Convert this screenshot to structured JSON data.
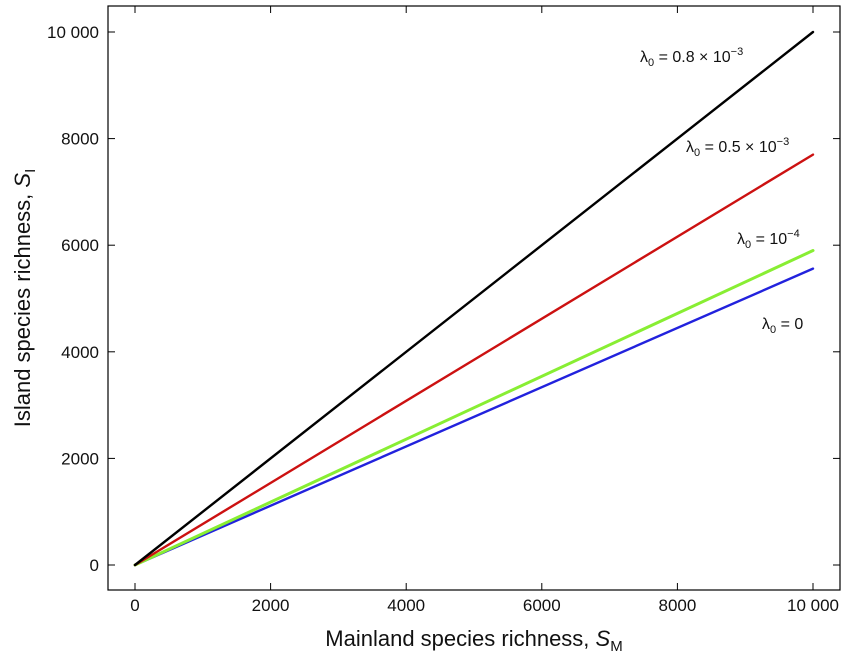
{
  "chart_data": {
    "type": "line",
    "title": "",
    "xlabel": {
      "text": "Mainland species richness, ",
      "symbol": "S",
      "sub": "M"
    },
    "ylabel": {
      "text": "Island species richness, ",
      "symbol": "S",
      "sub": "I"
    },
    "xlim": [
      0,
      10000
    ],
    "ylim": [
      0,
      10000
    ],
    "xticks": [
      0,
      2000,
      4000,
      6000,
      8000,
      10000
    ],
    "xtick_labels": [
      "0",
      "2000",
      "4000",
      "6000",
      "8000",
      "10 000"
    ],
    "yticks": [
      0,
      2000,
      4000,
      6000,
      8000,
      10000
    ],
    "ytick_labels": [
      "0",
      "2000",
      "4000",
      "6000",
      "8000",
      "10 000"
    ],
    "grid": false,
    "legend": "none (labels placed next to lines)",
    "series": [
      {
        "name": "λ0 = 0.8 × 10−3",
        "label": {
          "symbol": "λ",
          "sub": "0",
          "text": " = 0.8 × 10",
          "sup": "−3"
        },
        "color": "#000000",
        "x": [
          0,
          10000
        ],
        "y": [
          0,
          10000
        ]
      },
      {
        "name": "λ0 = 0.5 × 10−3",
        "label": {
          "symbol": "λ",
          "sub": "0",
          "text": " = 0.5 × 10",
          "sup": "−3"
        },
        "color": "#cc1111",
        "x": [
          0,
          10000
        ],
        "y": [
          0,
          7700
        ]
      },
      {
        "name": "λ0 = 10−4",
        "label": {
          "symbol": "λ",
          "sub": "0",
          "text": " = 10",
          "sup": "−4"
        },
        "color": "#88ee33",
        "x": [
          0,
          10000
        ],
        "y": [
          0,
          5900
        ]
      },
      {
        "name": "λ0 = 0",
        "label": {
          "symbol": "λ",
          "sub": "0",
          "text": " = 0",
          "sup": ""
        },
        "color": "#2222dd",
        "x": [
          0,
          10000
        ],
        "y": [
          0,
          5560
        ]
      }
    ]
  }
}
